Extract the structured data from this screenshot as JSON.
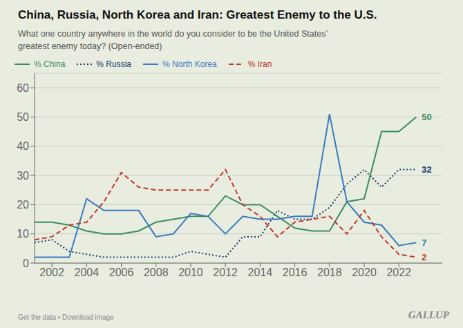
{
  "chart_data": {
    "type": "line",
    "title": "China, Russia, North Korea and Iran: Greatest Enemy to the U.S.",
    "subtitle": "What one country anywhere in the world do you consider to be the United States’\ngreatest enemy today? (Open-ended)",
    "x": [
      2001,
      2002,
      2003,
      2004,
      2005,
      2006,
      2007,
      2008,
      2009,
      2010,
      2011,
      2012,
      2013,
      2014,
      2015,
      2016,
      2017,
      2018,
      2019,
      2020,
      2021,
      2022,
      2023
    ],
    "series": [
      {
        "name": "% China",
        "color": "#3a8c5c",
        "line_style": "solid",
        "values": [
          14,
          14,
          13,
          11,
          10,
          10,
          11,
          14,
          15,
          16,
          16,
          23,
          20,
          20,
          16,
          12,
          11,
          11,
          21,
          22,
          45,
          45,
          50
        ]
      },
      {
        "name": "% Russia",
        "color": "#1a3c6e",
        "line_style": "dotted",
        "values": [
          7,
          8,
          4,
          3,
          2,
          2,
          2,
          2,
          2,
          4,
          3,
          2,
          9,
          9,
          18,
          15,
          15,
          19,
          27,
          32,
          26,
          32,
          32
        ]
      },
      {
        "name": "% North Korea",
        "color": "#3a7abf",
        "line_style": "solid",
        "values": [
          2,
          2,
          2,
          22,
          18,
          18,
          18,
          9,
          10,
          17,
          16,
          10,
          16,
          15,
          15,
          16,
          16,
          51,
          21,
          14,
          13,
          6,
          7
        ]
      },
      {
        "name": "% Iran",
        "color": "#c0392b",
        "line_style": "dashed",
        "values": [
          8,
          9,
          13,
          14,
          21,
          31,
          26,
          25,
          25,
          25,
          25,
          32,
          20,
          16,
          9,
          14,
          15,
          16,
          10,
          18,
          9,
          3,
          2
        ]
      }
    ],
    "xlim": [
      2001,
      2024.5
    ],
    "ylim": [
      0,
      65
    ],
    "xticks": [
      2002,
      2004,
      2006,
      2008,
      2010,
      2012,
      2014,
      2016,
      2018,
      2020,
      2022
    ],
    "yticks": [
      0,
      10,
      20,
      30,
      40,
      50,
      60
    ],
    "grid": true,
    "legend": "top",
    "annotations": [
      {
        "text": "50",
        "series": "% China"
      },
      {
        "text": "32",
        "series": "% Russia"
      },
      {
        "text": "7",
        "series": "% North Korea"
      },
      {
        "text": "2",
        "series": "% Iran"
      },
      {
        "text": "Get the data • Download image"
      },
      {
        "text": "GALLUP"
      }
    ]
  }
}
